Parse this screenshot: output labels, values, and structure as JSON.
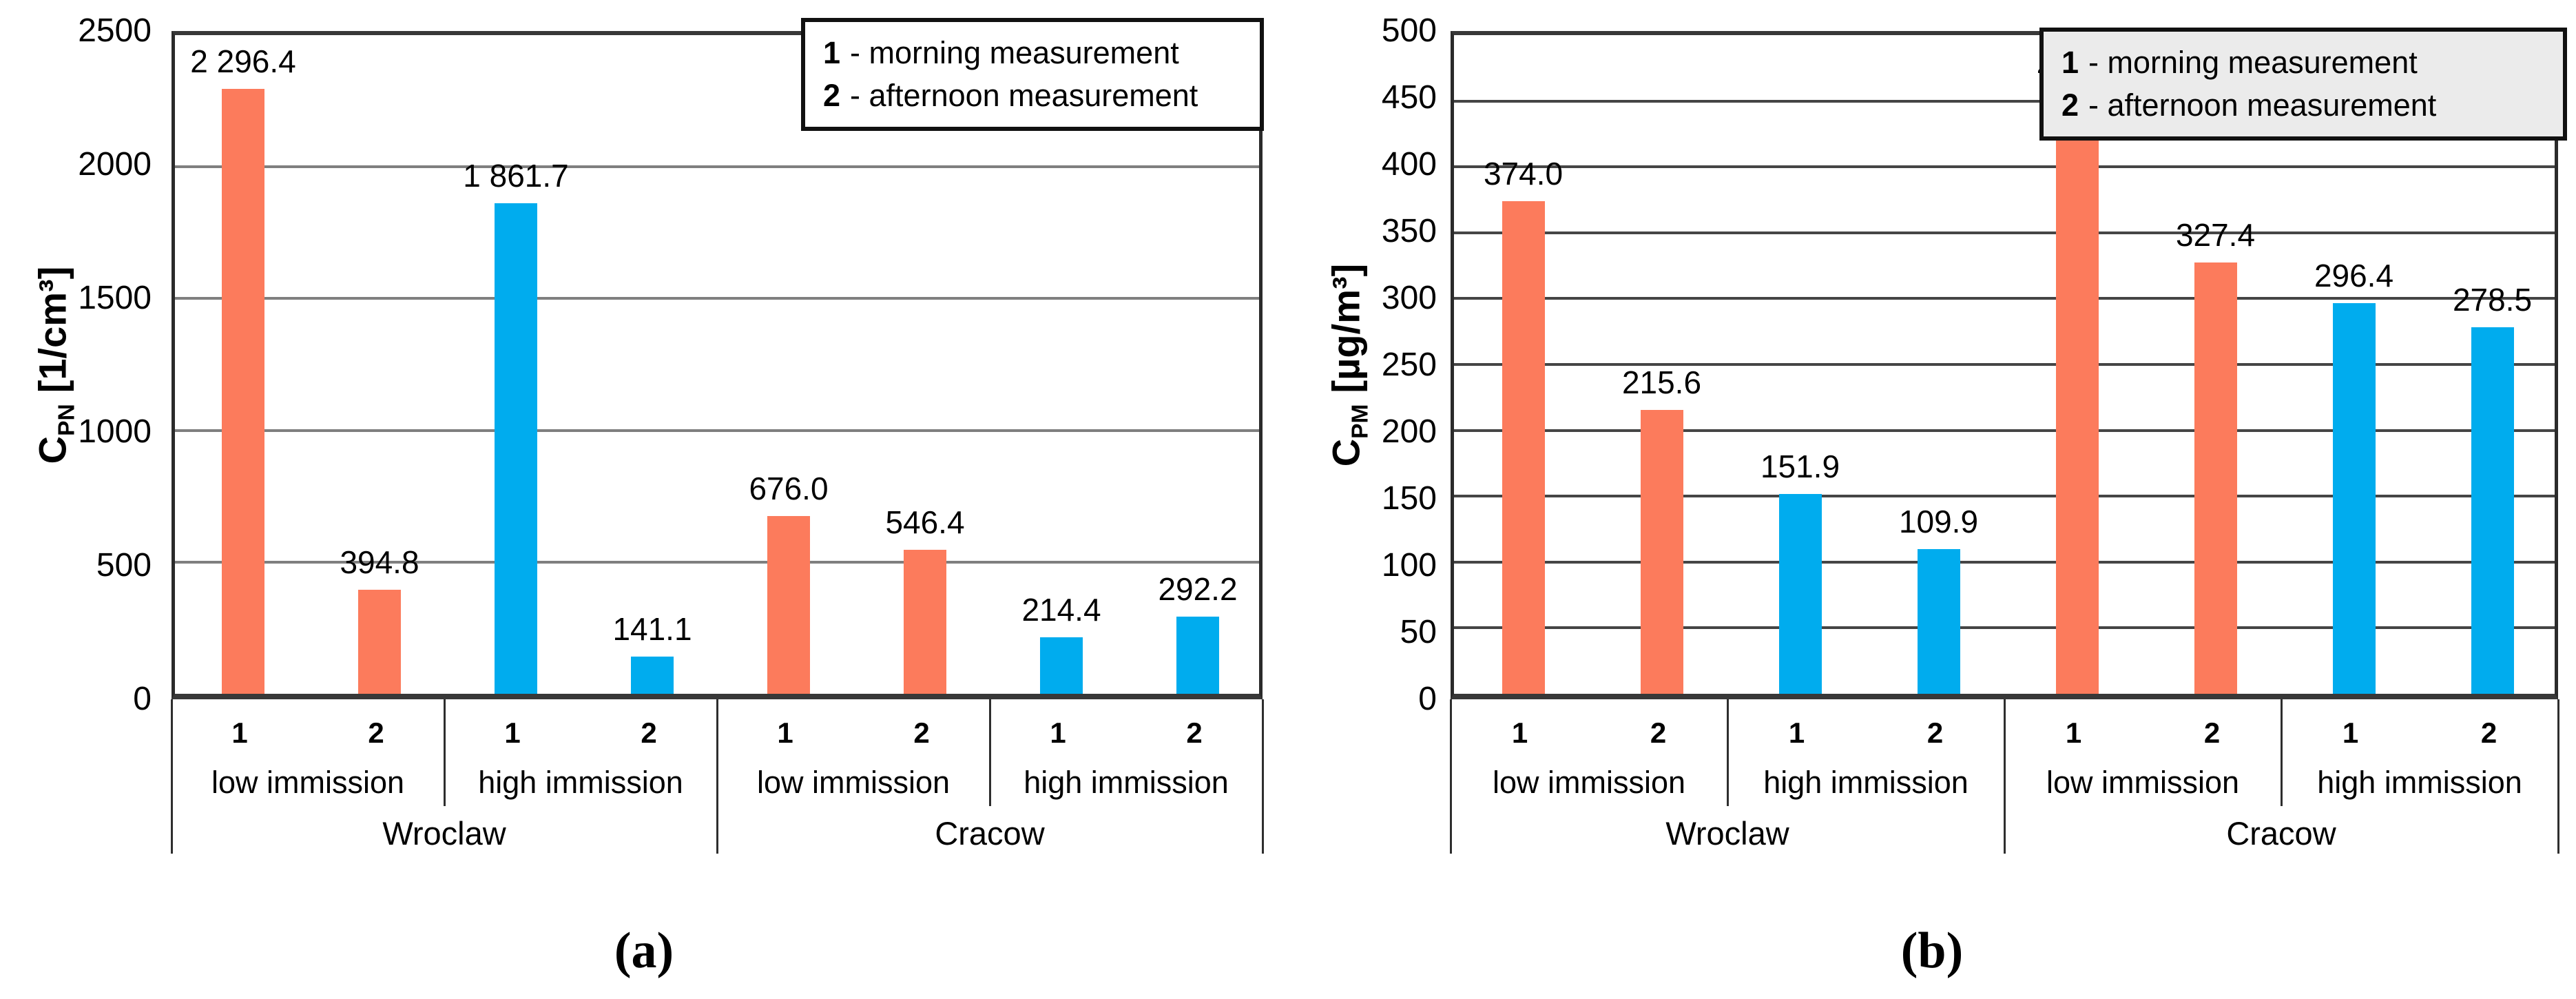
{
  "colors": {
    "orange": "#FC7B5C",
    "blue": "#00ACEE",
    "axis": "#2b2b2b",
    "text": "#000000"
  },
  "chart_data": [
    {
      "panel": "a",
      "type": "bar",
      "caption": "(a)",
      "ylabel": "C_PN [1/cm³]",
      "y_axis": {
        "symbol": "C",
        "subscript": "PN",
        "unit": "[1/cm³]"
      },
      "ylim": [
        0,
        2500
      ],
      "tick_step": 500,
      "yticks": [
        "2500",
        "2000",
        "1500",
        "1000",
        "500",
        "0"
      ],
      "grid": true,
      "gridline_color": "#7F7F7F",
      "legend_position": "top-right",
      "legend_bg": "#FFFFFF",
      "legend": [
        {
          "marker": "1",
          "text": "- morning measurement"
        },
        {
          "marker": "2",
          "text": "- afternoon measurement"
        }
      ],
      "cities": [
        {
          "name": "Wroclaw",
          "groups": [
            {
              "immission": "low immission",
              "color": "orange",
              "bars": [
                {
                  "x": "1",
                  "value": 2296.4,
                  "label": "2 296.4"
                },
                {
                  "x": "2",
                  "value": 394.8,
                  "label": "394.8"
                }
              ]
            },
            {
              "immission": "high immission",
              "color": "blue",
              "bars": [
                {
                  "x": "1",
                  "value": 1861.7,
                  "label": "1 861.7"
                },
                {
                  "x": "2",
                  "value": 141.1,
                  "label": "141.1"
                }
              ]
            }
          ]
        },
        {
          "name": "Cracow",
          "groups": [
            {
              "immission": "low immission",
              "color": "orange",
              "bars": [
                {
                  "x": "1",
                  "value": 676.0,
                  "label": "676.0"
                },
                {
                  "x": "2",
                  "value": 546.4,
                  "label": "546.4"
                }
              ]
            },
            {
              "immission": "high immission",
              "color": "blue",
              "bars": [
                {
                  "x": "1",
                  "value": 214.4,
                  "label": "214.4"
                },
                {
                  "x": "2",
                  "value": 292.2,
                  "label": "292.2"
                }
              ]
            }
          ]
        }
      ]
    },
    {
      "panel": "b",
      "type": "bar",
      "caption": "(b)",
      "ylabel": "C_PM [µg/m³]",
      "y_axis": {
        "symbol": "C",
        "subscript": "PM",
        "unit": "[µg/m³]"
      },
      "ylim": [
        0,
        500
      ],
      "tick_step": 50,
      "yticks": [
        "500",
        "450",
        "400",
        "350",
        "300",
        "250",
        "200",
        "150",
        "100",
        "50",
        "0"
      ],
      "grid": true,
      "gridline_color": "#454545",
      "legend_position": "top-right",
      "legend_bg": "#EBEBEB",
      "legend": [
        {
          "marker": "1",
          "text": "- morning measurement"
        },
        {
          "marker": "2",
          "text": "- afternoon measurement"
        }
      ],
      "cities": [
        {
          "name": "Wroclaw",
          "groups": [
            {
              "immission": "low immission",
              "color": "orange",
              "bars": [
                {
                  "x": "1",
                  "value": 374.0,
                  "label": "374.0"
                },
                {
                  "x": "2",
                  "value": 215.6,
                  "label": "215.6"
                }
              ]
            },
            {
              "immission": "high immission",
              "color": "blue",
              "bars": [
                {
                  "x": "1",
                  "value": 151.9,
                  "label": "151.9"
                },
                {
                  "x": "2",
                  "value": 109.9,
                  "label": "109.9"
                }
              ]
            }
          ]
        },
        {
          "name": "Cracow",
          "groups": [
            {
              "immission": "low immission",
              "color": "orange",
              "bars": [
                {
                  "x": "1",
                  "value": 455.1,
                  "label": "455.1"
                },
                {
                  "x": "2",
                  "value": 327.4,
                  "label": "327.4"
                }
              ]
            },
            {
              "immission": "high immission",
              "color": "blue",
              "bars": [
                {
                  "x": "1",
                  "value": 296.4,
                  "label": "296.4"
                },
                {
                  "x": "2",
                  "value": 278.5,
                  "label": "278.5"
                }
              ]
            }
          ]
        }
      ]
    }
  ]
}
